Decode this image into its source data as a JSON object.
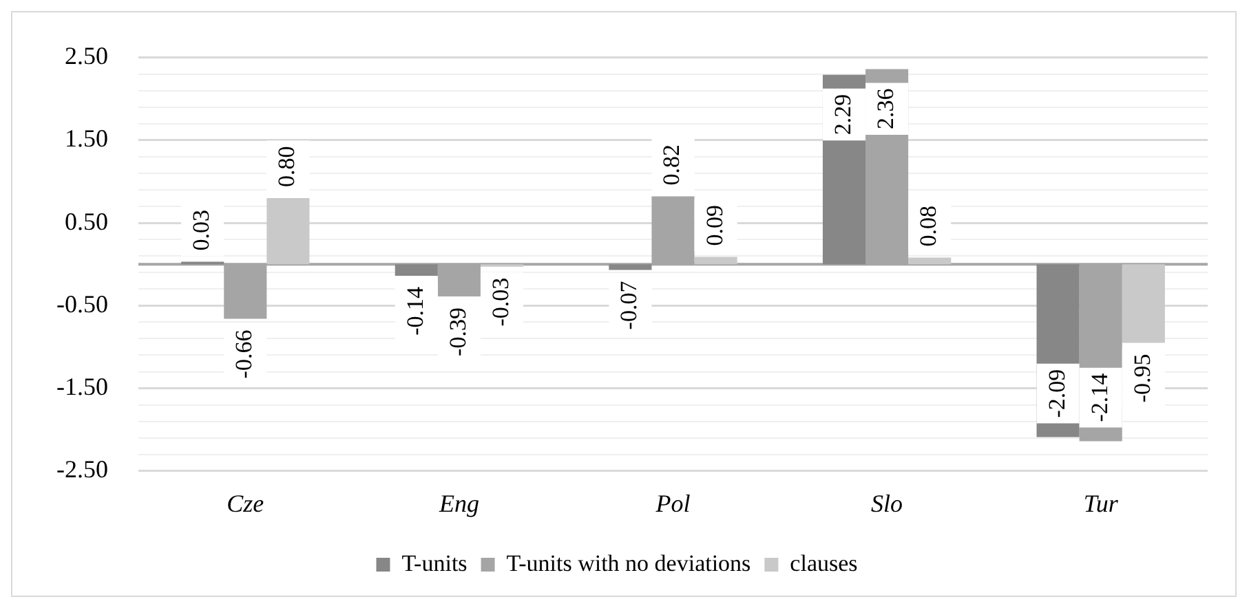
{
  "chart_data": {
    "type": "bar",
    "categories": [
      "Cze",
      "Eng",
      "Pol",
      "Slo",
      "Tur"
    ],
    "series": [
      {
        "name": "T-units",
        "color": "#878787",
        "values": [
          0.03,
          -0.14,
          -0.07,
          2.29,
          -2.09
        ],
        "value_labels": [
          "0.03",
          "-0.14",
          "-0.07",
          "2.29",
          "-2.09"
        ]
      },
      {
        "name": "T-units with no deviations",
        "color": "#a5a5a5",
        "values": [
          -0.66,
          -0.39,
          0.82,
          2.36,
          -2.14
        ],
        "value_labels": [
          "-0.66",
          "-0.39",
          "0.82",
          "2.36",
          "-2.14"
        ]
      },
      {
        "name": "clauses",
        "color": "#c9c9c9",
        "values": [
          0.8,
          -0.03,
          0.09,
          0.08,
          -0.95
        ],
        "value_labels": [
          "0.80",
          "-0.03",
          "0.09",
          "0.08",
          "-0.95"
        ]
      }
    ],
    "ylim": [
      -2.5,
      2.5
    ],
    "yticks": [
      {
        "value": -2.5,
        "label": "-2.50"
      },
      {
        "value": -2.3,
        "label": null
      },
      {
        "value": -2.1,
        "label": null
      },
      {
        "value": -1.9,
        "label": null
      },
      {
        "value": -1.7,
        "label": null
      },
      {
        "value": -1.5,
        "label": "-1.50"
      },
      {
        "value": -1.3,
        "label": null
      },
      {
        "value": -1.1,
        "label": null
      },
      {
        "value": -0.9,
        "label": null
      },
      {
        "value": -0.7,
        "label": null
      },
      {
        "value": -0.5,
        "label": "-0.50"
      },
      {
        "value": -0.3,
        "label": null
      },
      {
        "value": -0.1,
        "label": null
      },
      {
        "value": 0.1,
        "label": null
      },
      {
        "value": 0.3,
        "label": null
      },
      {
        "value": 0.5,
        "label": "0.50"
      },
      {
        "value": 0.7,
        "label": null
      },
      {
        "value": 0.9,
        "label": null
      },
      {
        "value": 1.1,
        "label": null
      },
      {
        "value": 1.3,
        "label": null
      },
      {
        "value": 1.5,
        "label": "1.50"
      },
      {
        "value": 1.7,
        "label": null
      },
      {
        "value": 1.9,
        "label": null
      },
      {
        "value": 2.1,
        "label": null
      },
      {
        "value": 2.3,
        "label": null
      },
      {
        "value": 2.5,
        "label": "2.50"
      }
    ],
    "grid": "y",
    "legend": "bottom"
  }
}
